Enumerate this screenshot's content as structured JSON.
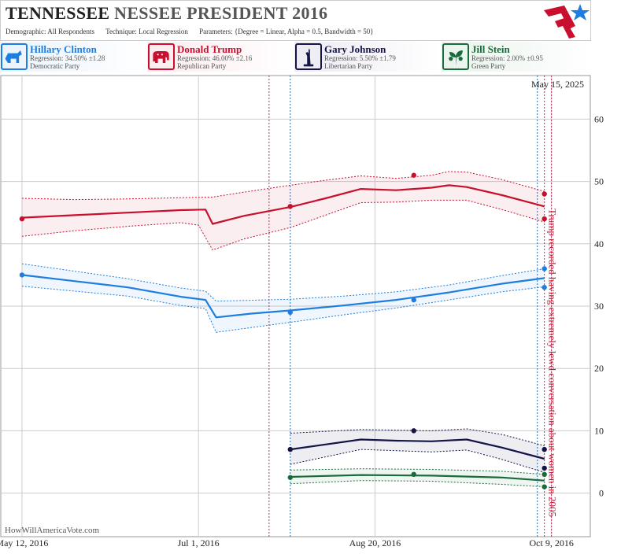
{
  "header": {
    "title_part1": "TENNESSEE",
    "title_part2": "NESSEE PRESIDENT 2016",
    "demographic": "Demographic: All Respondents",
    "technique": "Technique: Local Regression",
    "parameters": "Parameters: {Degree = Linear, Alpha = 0.5, Bandwidth = 50}"
  },
  "candidates": [
    {
      "name": "Hillary Clinton",
      "regression": "Regression: 34.50% ±1.28",
      "party": "Democratic Party",
      "color": "#1e7de0",
      "bg": "#eaf3fc",
      "icon": "donkey-icon"
    },
    {
      "name": "Donald Trump",
      "regression": "Regression: 46.00% ±2.16",
      "party": "Republican Party",
      "color": "#c8102e",
      "bg": "#fcebee",
      "icon": "elephant-icon"
    },
    {
      "name": "Gary Johnson",
      "regression": "Regression: 5.50% ±1.79",
      "party": "Libertarian Party",
      "color": "#141447",
      "bg": "#ecebf3",
      "icon": "liberty-statue-icon"
    },
    {
      "name": "Jill Stein",
      "regression": "Regression: 2.00% ±0.95",
      "party": "Green Party",
      "color": "#1a6b3a",
      "bg": "#e9f3ec",
      "icon": "green-leaf-icon"
    }
  ],
  "watermark": "HowWillAmericaVote.com",
  "chart_data": {
    "type": "line",
    "date_label": "May 15, 2025",
    "x_ticks": [
      "May 12, 2016",
      "Jul 1, 2016",
      "Aug 20, 2016",
      "Oct 9, 2016"
    ],
    "y_ticks": [
      0,
      10,
      20,
      30,
      40,
      50,
      60
    ],
    "ylim": [
      -7,
      67
    ],
    "xlim": [
      "2016-05-06",
      "2016-10-20"
    ],
    "annotation": "Trump recorded having extremely lewd conversation about women in 2005",
    "annotation_date": "2016-10-07",
    "poll_lines_red": [
      "2016-07-21",
      "2016-10-07",
      "2016-10-09"
    ],
    "poll_lines_blue": [
      "2016-07-27",
      "2016-10-05"
    ],
    "series": [
      {
        "name": "Donald Trump",
        "color": "#c8102e",
        "line": [
          [
            "2016-05-12",
            44.2
          ],
          [
            "2016-05-27",
            44.6
          ],
          [
            "2016-06-11",
            45.0
          ],
          [
            "2016-06-26",
            45.4
          ],
          [
            "2016-07-03",
            45.5
          ],
          [
            "2016-07-05",
            43.2
          ],
          [
            "2016-07-14",
            44.5
          ],
          [
            "2016-07-27",
            45.9
          ],
          [
            "2016-08-06",
            47.3
          ],
          [
            "2016-08-16",
            48.8
          ],
          [
            "2016-08-26",
            48.6
          ],
          [
            "2016-09-05",
            49.0
          ],
          [
            "2016-09-10",
            49.4
          ],
          [
            "2016-09-15",
            49.1
          ],
          [
            "2016-09-25",
            47.8
          ],
          [
            "2016-10-07",
            46.0
          ]
        ],
        "upper": [
          [
            "2016-05-12",
            47.3
          ],
          [
            "2016-05-27",
            47.1
          ],
          [
            "2016-06-11",
            47.2
          ],
          [
            "2016-06-26",
            47.4
          ],
          [
            "2016-07-05",
            47.5
          ],
          [
            "2016-07-14",
            48.3
          ],
          [
            "2016-07-27",
            49.4
          ],
          [
            "2016-08-06",
            50.2
          ],
          [
            "2016-08-16",
            50.9
          ],
          [
            "2016-08-26",
            50.5
          ],
          [
            "2016-09-05",
            51.0
          ],
          [
            "2016-09-10",
            51.6
          ],
          [
            "2016-09-15",
            51.5
          ],
          [
            "2016-09-25",
            50.3
          ],
          [
            "2016-10-07",
            48.4
          ]
        ],
        "lower": [
          [
            "2016-05-12",
            41.2
          ],
          [
            "2016-05-27",
            42.1
          ],
          [
            "2016-06-11",
            42.8
          ],
          [
            "2016-06-26",
            43.4
          ],
          [
            "2016-07-01",
            43.0
          ],
          [
            "2016-07-05",
            39.0
          ],
          [
            "2016-07-14",
            40.8
          ],
          [
            "2016-07-27",
            42.6
          ],
          [
            "2016-08-06",
            44.6
          ],
          [
            "2016-08-16",
            46.6
          ],
          [
            "2016-08-26",
            46.7
          ],
          [
            "2016-09-05",
            47.0
          ],
          [
            "2016-09-15",
            47.0
          ],
          [
            "2016-09-25",
            45.5
          ],
          [
            "2016-10-07",
            43.5
          ]
        ],
        "points": [
          [
            "2016-05-12",
            44
          ],
          [
            "2016-07-27",
            46
          ],
          [
            "2016-08-31",
            51
          ],
          [
            "2016-10-07",
            48
          ],
          [
            "2016-10-07",
            44
          ]
        ]
      },
      {
        "name": "Hillary Clinton",
        "color": "#1e7de0",
        "line": [
          [
            "2016-05-12",
            35.0
          ],
          [
            "2016-05-27",
            34.0
          ],
          [
            "2016-06-11",
            33.0
          ],
          [
            "2016-06-26",
            31.5
          ],
          [
            "2016-07-03",
            31.0
          ],
          [
            "2016-07-06",
            28.2
          ],
          [
            "2016-07-16",
            28.8
          ],
          [
            "2016-07-27",
            29.3
          ],
          [
            "2016-08-11",
            30.1
          ],
          [
            "2016-08-26",
            31.0
          ],
          [
            "2016-09-10",
            32.2
          ],
          [
            "2016-09-25",
            33.6
          ],
          [
            "2016-10-07",
            34.5
          ]
        ],
        "upper": [
          [
            "2016-05-12",
            36.8
          ],
          [
            "2016-05-27",
            35.6
          ],
          [
            "2016-06-11",
            34.4
          ],
          [
            "2016-06-26",
            32.9
          ],
          [
            "2016-07-03",
            32.4
          ],
          [
            "2016-07-06",
            30.8
          ],
          [
            "2016-07-27",
            31.1
          ],
          [
            "2016-08-11",
            31.6
          ],
          [
            "2016-08-26",
            32.3
          ],
          [
            "2016-09-10",
            33.4
          ],
          [
            "2016-09-25",
            34.9
          ],
          [
            "2016-10-07",
            36.0
          ]
        ],
        "lower": [
          [
            "2016-05-12",
            33.2
          ],
          [
            "2016-05-27",
            32.4
          ],
          [
            "2016-06-11",
            31.6
          ],
          [
            "2016-06-26",
            30.1
          ],
          [
            "2016-07-03",
            29.6
          ],
          [
            "2016-07-06",
            25.8
          ],
          [
            "2016-07-27",
            27.4
          ],
          [
            "2016-08-11",
            28.6
          ],
          [
            "2016-08-26",
            29.7
          ],
          [
            "2016-09-10",
            31.0
          ],
          [
            "2016-09-25",
            32.3
          ],
          [
            "2016-10-07",
            33.1
          ]
        ],
        "points": [
          [
            "2016-05-12",
            35
          ],
          [
            "2016-07-27",
            29
          ],
          [
            "2016-08-31",
            31
          ],
          [
            "2016-10-07",
            36
          ],
          [
            "2016-10-07",
            33
          ]
        ]
      },
      {
        "name": "Gary Johnson",
        "color": "#141447",
        "line": [
          [
            "2016-07-27",
            7.0
          ],
          [
            "2016-08-06",
            7.8
          ],
          [
            "2016-08-16",
            8.6
          ],
          [
            "2016-08-26",
            8.4
          ],
          [
            "2016-09-05",
            8.3
          ],
          [
            "2016-09-15",
            8.6
          ],
          [
            "2016-09-25",
            7.3
          ],
          [
            "2016-10-07",
            5.5
          ]
        ],
        "upper": [
          [
            "2016-07-27",
            9.6
          ],
          [
            "2016-08-16",
            10.2
          ],
          [
            "2016-09-05",
            10.0
          ],
          [
            "2016-09-15",
            10.3
          ],
          [
            "2016-09-25",
            9.4
          ],
          [
            "2016-10-07",
            7.6
          ]
        ],
        "lower": [
          [
            "2016-07-27",
            4.6
          ],
          [
            "2016-08-16",
            7.0
          ],
          [
            "2016-09-05",
            6.6
          ],
          [
            "2016-09-15",
            6.9
          ],
          [
            "2016-09-25",
            5.4
          ],
          [
            "2016-10-07",
            3.3
          ]
        ],
        "points": [
          [
            "2016-07-27",
            7
          ],
          [
            "2016-08-31",
            10
          ],
          [
            "2016-10-07",
            7
          ],
          [
            "2016-10-07",
            4
          ]
        ]
      },
      {
        "name": "Jill Stein",
        "color": "#1a6b3a",
        "line": [
          [
            "2016-07-27",
            2.6
          ],
          [
            "2016-08-16",
            2.9
          ],
          [
            "2016-09-05",
            2.8
          ],
          [
            "2016-09-25",
            2.5
          ],
          [
            "2016-10-07",
            2.0
          ]
        ],
        "upper": [
          [
            "2016-07-27",
            3.7
          ],
          [
            "2016-08-16",
            3.9
          ],
          [
            "2016-09-05",
            3.8
          ],
          [
            "2016-09-25",
            3.5
          ],
          [
            "2016-10-07",
            3.0
          ]
        ],
        "lower": [
          [
            "2016-07-27",
            1.5
          ],
          [
            "2016-08-16",
            2.0
          ],
          [
            "2016-09-05",
            1.9
          ],
          [
            "2016-09-25",
            1.4
          ],
          [
            "2016-10-07",
            1.0
          ]
        ],
        "points": [
          [
            "2016-07-27",
            2.5
          ],
          [
            "2016-08-31",
            3
          ],
          [
            "2016-10-07",
            3
          ],
          [
            "2016-10-07",
            1
          ]
        ]
      }
    ]
  }
}
